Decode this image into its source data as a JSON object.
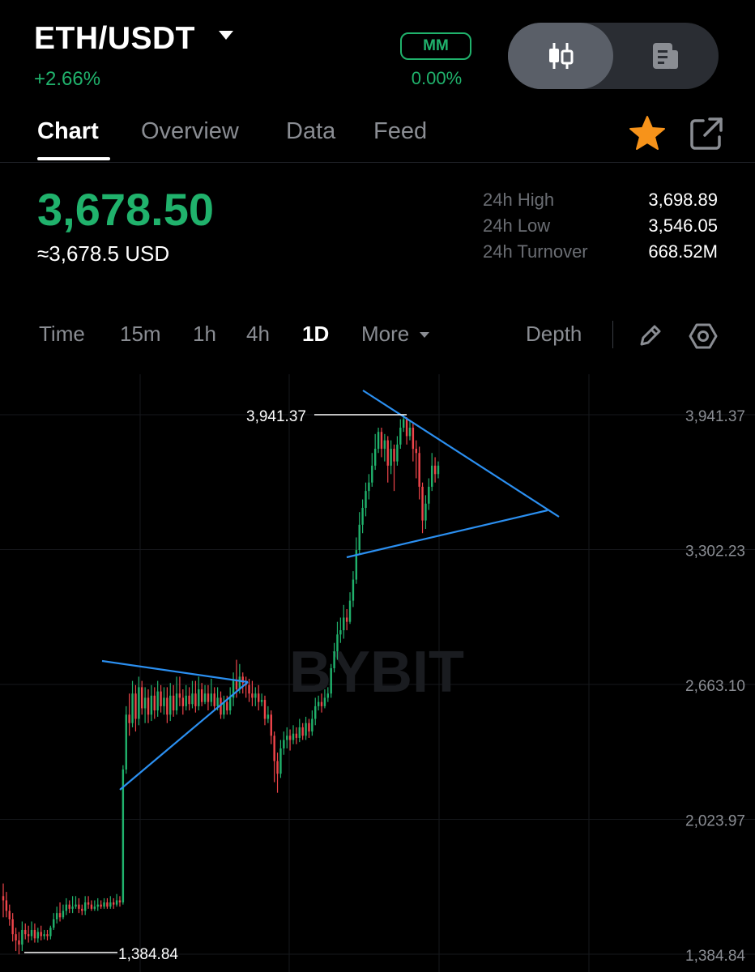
{
  "header": {
    "pair": "ETH/USDT",
    "change": "+2.66%",
    "mm_label": "MM",
    "mm_value": "0.00%"
  },
  "tabs": [
    {
      "label": "Chart",
      "active": true
    },
    {
      "label": "Overview"
    },
    {
      "label": "Data"
    },
    {
      "label": "Feed"
    }
  ],
  "icons": {
    "toggle_left": "candlestick-icon",
    "toggle_right": "document-icon",
    "favorite": "star-icon",
    "share": "share-icon",
    "draw": "pencil-icon",
    "settings": "hexagon-settings-icon"
  },
  "price": {
    "last": "3,678.50",
    "usd": "≈3,678.5 USD"
  },
  "stats": [
    {
      "label": "24h High",
      "value": "3,698.89"
    },
    {
      "label": "24h Low",
      "value": "3,546.05"
    },
    {
      "label": "24h Turnover",
      "value": "668.52M"
    }
  ],
  "timeframes": {
    "time": "Time",
    "m15": "15m",
    "h1": "1h",
    "h4": "4h",
    "d1": "1D",
    "more": "More",
    "depth": "Depth"
  },
  "colors": {
    "up": "#20b26c",
    "down": "#ef454a",
    "trendline": "#2b8ff0",
    "favorite": "#f7931a"
  },
  "chart_data": {
    "type": "candlestick",
    "y_ticks": [
      "3,941.37",
      "3,302.23",
      "2,663.10",
      "2,023.97",
      "1,384.84"
    ],
    "high_label": "3,941.37",
    "low_label": "1,384.84",
    "ylim": [
      1384.84,
      3941.37
    ],
    "watermark": "BYBIT",
    "candles": [
      [
        1.66,
        1.64,
        1.56,
        1.72
      ],
      [
        1.64,
        1.59,
        1.56,
        1.68
      ],
      [
        1.59,
        1.55,
        1.52,
        1.62
      ],
      [
        1.55,
        1.48,
        1.445,
        1.58
      ],
      [
        1.48,
        1.45,
        1.4,
        1.51
      ],
      [
        1.45,
        1.43,
        1.384,
        1.49
      ],
      [
        1.43,
        1.5,
        1.4,
        1.54
      ],
      [
        1.5,
        1.48,
        1.455,
        1.53
      ],
      [
        1.48,
        1.47,
        1.44,
        1.52
      ],
      [
        1.47,
        1.5,
        1.45,
        1.54
      ],
      [
        1.5,
        1.46,
        1.44,
        1.53
      ],
      [
        1.46,
        1.49,
        1.44,
        1.51
      ],
      [
        1.49,
        1.47,
        1.45,
        1.52
      ],
      [
        1.47,
        1.48,
        1.455,
        1.5
      ],
      [
        1.48,
        1.47,
        1.45,
        1.5
      ],
      [
        1.47,
        1.51,
        1.455,
        1.52
      ],
      [
        1.51,
        1.55,
        1.5,
        1.58
      ],
      [
        1.55,
        1.58,
        1.53,
        1.61
      ],
      [
        1.58,
        1.56,
        1.54,
        1.63
      ],
      [
        1.56,
        1.59,
        1.55,
        1.62
      ],
      [
        1.59,
        1.62,
        1.57,
        1.65
      ],
      [
        1.62,
        1.6,
        1.58,
        1.64
      ],
      [
        1.6,
        1.61,
        1.58,
        1.66
      ],
      [
        1.61,
        1.62,
        1.6,
        1.66
      ],
      [
        1.62,
        1.6,
        1.58,
        1.65
      ],
      [
        1.6,
        1.59,
        1.57,
        1.62
      ],
      [
        1.59,
        1.63,
        1.57,
        1.66
      ],
      [
        1.63,
        1.62,
        1.6,
        1.66
      ],
      [
        1.62,
        1.6,
        1.59,
        1.64
      ],
      [
        1.6,
        1.61,
        1.59,
        1.64
      ],
      [
        1.61,
        1.62,
        1.59,
        1.65
      ],
      [
        1.62,
        1.61,
        1.6,
        1.64
      ],
      [
        1.61,
        1.63,
        1.6,
        1.65
      ],
      [
        1.63,
        1.61,
        1.6,
        1.65
      ],
      [
        1.61,
        1.63,
        1.6,
        1.66
      ],
      [
        1.63,
        1.62,
        1.6,
        1.65
      ],
      [
        1.62,
        1.64,
        1.61,
        1.67
      ],
      [
        1.64,
        1.63,
        1.61,
        1.66
      ],
      [
        1.63,
        2.26,
        1.62,
        2.28
      ],
      [
        2.26,
        2.52,
        2.24,
        2.56
      ],
      [
        2.52,
        2.48,
        2.42,
        2.62
      ],
      [
        2.48,
        2.62,
        2.46,
        2.68
      ],
      [
        2.62,
        2.5,
        2.44,
        2.66
      ],
      [
        2.5,
        2.65,
        2.47,
        2.7
      ],
      [
        2.65,
        2.55,
        2.52,
        2.68
      ],
      [
        2.55,
        2.6,
        2.48,
        2.65
      ],
      [
        2.6,
        2.52,
        2.48,
        2.64
      ],
      [
        2.52,
        2.61,
        2.49,
        2.66
      ],
      [
        2.61,
        2.54,
        2.5,
        2.65
      ],
      [
        2.54,
        2.63,
        2.51,
        2.68
      ],
      [
        2.63,
        2.56,
        2.53,
        2.66
      ],
      [
        2.56,
        2.6,
        2.52,
        2.65
      ],
      [
        2.6,
        2.52,
        2.48,
        2.65
      ],
      [
        2.52,
        2.61,
        2.49,
        2.67
      ],
      [
        2.61,
        2.54,
        2.51,
        2.66
      ],
      [
        2.54,
        2.62,
        2.52,
        2.7
      ],
      [
        2.62,
        2.6,
        2.56,
        2.7
      ],
      [
        2.6,
        2.56,
        2.52,
        2.64
      ],
      [
        2.56,
        2.61,
        2.54,
        2.66
      ],
      [
        2.61,
        2.57,
        2.54,
        2.65
      ],
      [
        2.57,
        2.62,
        2.55,
        2.68
      ],
      [
        2.62,
        2.56,
        2.53,
        2.68
      ],
      [
        2.56,
        2.64,
        2.54,
        2.7
      ],
      [
        2.64,
        2.58,
        2.56,
        2.67
      ],
      [
        2.58,
        2.62,
        2.57,
        2.66
      ],
      [
        2.62,
        2.58,
        2.54,
        2.66
      ],
      [
        2.58,
        2.62,
        2.56,
        2.69
      ],
      [
        2.62,
        2.56,
        2.54,
        2.65
      ],
      [
        2.56,
        2.6,
        2.54,
        2.65
      ],
      [
        2.6,
        2.52,
        2.5,
        2.63
      ],
      [
        2.52,
        2.58,
        2.5,
        2.61
      ],
      [
        2.58,
        2.54,
        2.52,
        2.61
      ],
      [
        2.54,
        2.6,
        2.52,
        2.65
      ],
      [
        2.6,
        2.68,
        2.56,
        2.72
      ],
      [
        2.68,
        2.64,
        2.6,
        2.78
      ],
      [
        2.64,
        2.7,
        2.62,
        2.76
      ],
      [
        2.7,
        2.67,
        2.62,
        2.72
      ],
      [
        2.67,
        2.66,
        2.6,
        2.7
      ],
      [
        2.66,
        2.62,
        2.58,
        2.69
      ],
      [
        2.62,
        2.6,
        2.56,
        2.68
      ],
      [
        2.6,
        2.62,
        2.56,
        2.65
      ],
      [
        2.62,
        2.58,
        2.54,
        2.66
      ],
      [
        2.58,
        2.59,
        2.56,
        2.62
      ],
      [
        2.59,
        2.5,
        2.47,
        2.61
      ],
      [
        2.5,
        2.52,
        2.48,
        2.56
      ],
      [
        2.52,
        2.42,
        2.38,
        2.54
      ],
      [
        2.42,
        2.3,
        2.2,
        2.44
      ],
      [
        2.3,
        2.24,
        2.15,
        2.34
      ],
      [
        2.24,
        2.36,
        2.22,
        2.4
      ],
      [
        2.36,
        2.4,
        2.33,
        2.44
      ],
      [
        2.4,
        2.42,
        2.36,
        2.46
      ],
      [
        2.42,
        2.4,
        2.35,
        2.45
      ],
      [
        2.4,
        2.43,
        2.38,
        2.47
      ],
      [
        2.43,
        2.41,
        2.38,
        2.46
      ],
      [
        2.41,
        2.46,
        2.39,
        2.5
      ],
      [
        2.46,
        2.42,
        2.4,
        2.48
      ],
      [
        2.42,
        2.48,
        2.4,
        2.51
      ],
      [
        2.48,
        2.44,
        2.41,
        2.5
      ],
      [
        2.44,
        2.5,
        2.42,
        2.54
      ],
      [
        2.5,
        2.56,
        2.47,
        2.6
      ],
      [
        2.56,
        2.58,
        2.54,
        2.61
      ],
      [
        2.58,
        2.56,
        2.53,
        2.62
      ],
      [
        2.56,
        2.6,
        2.55,
        2.64
      ],
      [
        2.6,
        2.62,
        2.58,
        2.65
      ],
      [
        2.62,
        2.74,
        2.6,
        2.76
      ],
      [
        2.74,
        2.82,
        2.72,
        2.86
      ],
      [
        2.82,
        2.9,
        2.78,
        2.96
      ],
      [
        2.9,
        2.92,
        2.86,
        2.98
      ],
      [
        2.92,
        2.98,
        2.88,
        3.04
      ],
      [
        2.98,
        2.96,
        2.92,
        3.02
      ],
      [
        2.96,
        3.06,
        2.95,
        3.1
      ],
      [
        3.06,
        3.16,
        3.03,
        3.2
      ],
      [
        3.16,
        3.3,
        3.14,
        3.36
      ],
      [
        3.3,
        3.42,
        3.28,
        3.48
      ],
      [
        3.42,
        3.5,
        3.38,
        3.54
      ],
      [
        3.5,
        3.58,
        3.46,
        3.62
      ],
      [
        3.58,
        3.62,
        3.54,
        3.66
      ],
      [
        3.62,
        3.7,
        3.6,
        3.76
      ],
      [
        3.7,
        3.78,
        3.68,
        3.85
      ],
      [
        3.78,
        3.86,
        3.76,
        3.88
      ],
      [
        3.86,
        3.78,
        3.74,
        3.88
      ],
      [
        3.78,
        3.82,
        3.72,
        3.85
      ],
      [
        3.82,
        3.7,
        3.62,
        3.84
      ],
      [
        3.7,
        3.78,
        3.66,
        3.82
      ],
      [
        3.78,
        3.72,
        3.58,
        3.8
      ],
      [
        3.72,
        3.8,
        3.7,
        3.84
      ],
      [
        3.8,
        3.88,
        3.78,
        3.92
      ],
      [
        3.88,
        3.92,
        3.86,
        3.941
      ],
      [
        3.92,
        3.84,
        3.8,
        3.93
      ],
      [
        3.84,
        3.88,
        3.82,
        3.91
      ],
      [
        3.88,
        3.78,
        3.72,
        3.9
      ],
      [
        3.78,
        3.76,
        3.64,
        3.82
      ],
      [
        3.76,
        3.6,
        3.54,
        3.79
      ],
      [
        3.6,
        3.44,
        3.38,
        3.62
      ],
      [
        3.44,
        3.52,
        3.4,
        3.56
      ],
      [
        3.52,
        3.6,
        3.49,
        3.64
      ],
      [
        3.6,
        3.7,
        3.58,
        3.76
      ],
      [
        3.7,
        3.66,
        3.62,
        3.74
      ],
      [
        3.66,
        3.7,
        3.64,
        3.72
      ]
    ],
    "candles_unit": "thousand USDT",
    "candle_fields": [
      "open",
      "close",
      "low",
      "high"
    ]
  }
}
